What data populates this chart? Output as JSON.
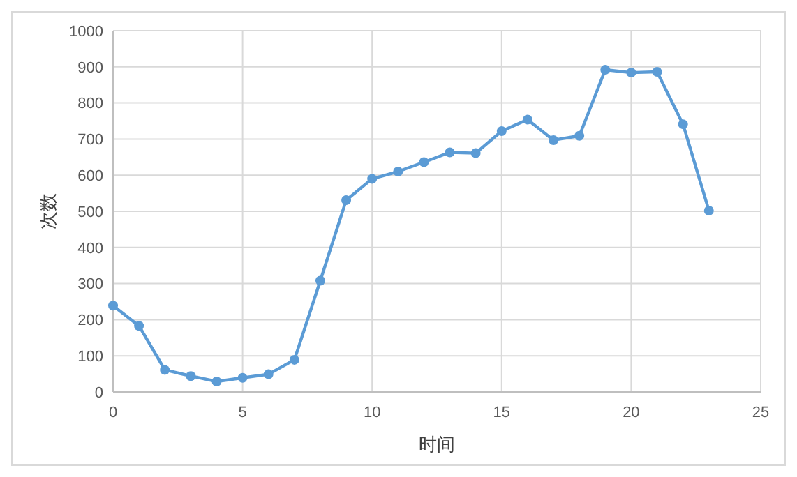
{
  "chart_data": {
    "type": "line",
    "xlabel": "时间",
    "ylabel": "次数",
    "x": [
      0,
      1,
      2,
      3,
      4,
      5,
      6,
      7,
      8,
      9,
      10,
      11,
      12,
      13,
      14,
      15,
      16,
      17,
      18,
      19,
      20,
      21,
      22,
      23
    ],
    "series": [
      {
        "color": "#5b9bd5",
        "values": [
          239,
          183,
          61,
          44,
          29,
          39,
          49,
          89,
          308,
          531,
          590,
          610,
          636,
          663,
          661,
          722,
          754,
          697,
          709,
          892,
          884,
          886,
          741,
          502
        ]
      }
    ],
    "xlim": [
      0,
      25
    ],
    "xticks": [
      0,
      5,
      10,
      15,
      20,
      25
    ],
    "ylim": [
      0,
      1000
    ],
    "yticks": [
      0,
      100,
      200,
      300,
      400,
      500,
      600,
      700,
      800,
      900,
      1000
    ],
    "grid": true,
    "marker": "circle",
    "line_style": "solid"
  }
}
